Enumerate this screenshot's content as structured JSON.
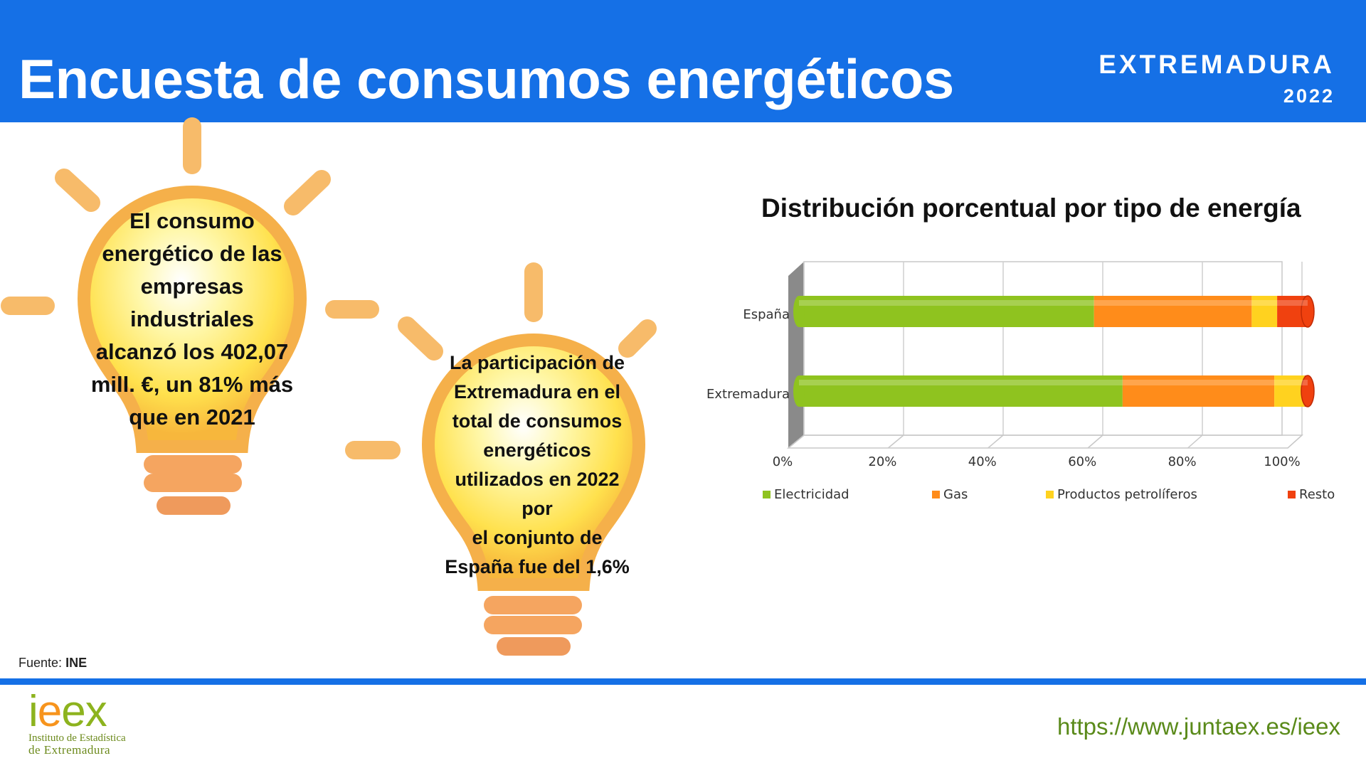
{
  "header": {
    "title": "Encuesta de consumos energéticos",
    "region": "EXTREMADURA",
    "year": "2022"
  },
  "bulb1": {
    "lines": [
      "El consumo",
      "energético de las",
      "empresas",
      "industriales",
      "alcanzó los 402,07",
      "mill. €, un 81% más",
      "que en 2021"
    ]
  },
  "bulb2": {
    "lines": [
      "La participación de",
      "Extremadura en el",
      "total de consumos",
      "energéticos",
      "utilizados en 2022",
      "por",
      "el conjunto de",
      "España fue del 1,6%"
    ]
  },
  "chart_data": {
    "type": "bar",
    "orientation": "horizontal-stacked-100",
    "title": "Distribución porcentual por tipo de energía",
    "categories": [
      "España",
      "Extremadura"
    ],
    "series": [
      {
        "name": "Electricidad",
        "color": "#8fc31f",
        "values": [
          58,
          64
        ]
      },
      {
        "name": "Gas",
        "color": "#ff8c1a",
        "values": [
          31,
          30
        ]
      },
      {
        "name": "Productos petrolíferos",
        "color": "#ffd21f",
        "values": [
          5,
          6
        ]
      },
      {
        "name": "Resto",
        "color": "#f0410f",
        "values": [
          6,
          0.6
        ]
      }
    ],
    "xticks": [
      "0%",
      "20%",
      "40%",
      "60%",
      "80%",
      "100%"
    ],
    "xlim": [
      0,
      100
    ],
    "legend": "bottom",
    "grid": true
  },
  "source": {
    "label": "Fuente:",
    "value": "INE"
  },
  "footer": {
    "url": "https://www.juntaex.es/ieex",
    "logo_i": "i",
    "logo_e": "e",
    "logo_ex": "ex",
    "logo_line1": "Instituto de Estadística",
    "logo_line2": "de Extremadura"
  }
}
